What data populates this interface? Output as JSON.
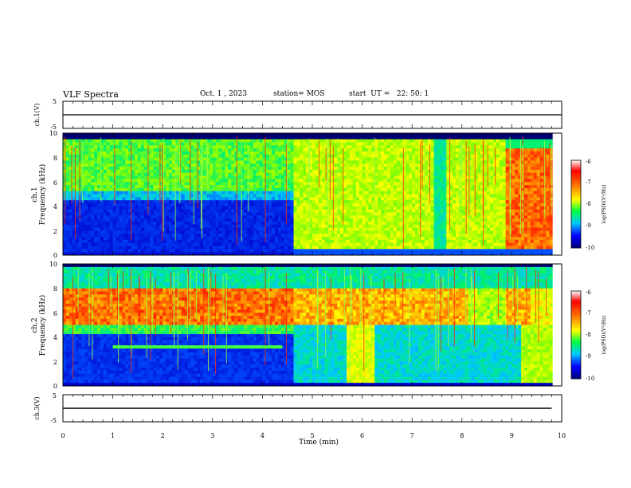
{
  "header": {
    "title": "VLF Spectra",
    "date": "Oct. 1 , 2023",
    "station": "station= MOS",
    "start": "start  UT =   22: 50: 1"
  },
  "colors": {
    "spectrum_scale": [
      "#000080",
      "#0000ff",
      "#00c8ff",
      "#00ff80",
      "#a0ff00",
      "#ffff00",
      "#ff8000",
      "#ff0000",
      "#c00000",
      "#ffffff"
    ],
    "trace": "#000000",
    "background": "#ffffff"
  },
  "chart_data": [
    {
      "type": "line",
      "panel": "ch1-voltage",
      "ylabel": "ch.1(V)",
      "ylim": [
        -5,
        5
      ],
      "yticks": [
        "5",
        "-5"
      ],
      "x": [
        0,
        10
      ],
      "y": [
        0,
        0
      ]
    },
    {
      "type": "heatmap",
      "panel": "ch1-spectrogram",
      "ylabel": "ch.1\nFrequency (kHz)",
      "ylabel_ch": "ch.1",
      "ylabel_freq": "Frequency (kHz)",
      "ylim": [
        0,
        10
      ],
      "yticks": [
        "0",
        "2",
        "4",
        "6",
        "8",
        "10"
      ],
      "xlim": [
        0,
        10
      ],
      "colorbar": {
        "label": "log(PSD)(V²/Hz)",
        "range": [
          -10,
          -6
        ],
        "ticks": [
          "-6",
          "-7",
          "-8",
          "-9",
          "-10"
        ]
      },
      "segments": [
        {
          "t_start": 0.0,
          "t_end": 4.6,
          "description_level": "blue below 4.5 kHz, green-yellow above 5 kHz"
        },
        {
          "t_start": 4.6,
          "t_end": 8.9,
          "description_level": "green-yellow broadband 0.5–9 kHz"
        },
        {
          "t_start": 8.9,
          "t_end": 9.8,
          "description_level": "red/orange broadband 0.5–9 kHz"
        }
      ]
    },
    {
      "type": "heatmap",
      "panel": "ch2-spectrogram",
      "ylabel": "ch.2\nFrequency (kHz)",
      "ylabel_ch": "ch.2",
      "ylabel_freq": "Frequency (kHz)",
      "ylim": [
        0,
        10
      ],
      "yticks": [
        "0",
        "2",
        "4",
        "6",
        "8",
        "10"
      ],
      "xlim": [
        0,
        10
      ],
      "colorbar": {
        "label": "log(PSD)(V²/Hz)",
        "range": [
          -10,
          -6
        ],
        "ticks": [
          "-6",
          "-7",
          "-8",
          "-9",
          "-10"
        ]
      }
    },
    {
      "type": "line",
      "panel": "ch3-voltage",
      "ylabel": "ch.3(V)",
      "ylim": [
        -5,
        5
      ],
      "yticks": [
        "5",
        "-5"
      ],
      "x": [
        0,
        10
      ],
      "y": [
        0,
        0
      ]
    }
  ],
  "xaxis": {
    "label": "Time  (min)",
    "range": [
      0,
      10
    ],
    "ticks": [
      "0",
      "1",
      "2",
      "3",
      "4",
      "5",
      "6",
      "7",
      "8",
      "9",
      "10"
    ]
  }
}
